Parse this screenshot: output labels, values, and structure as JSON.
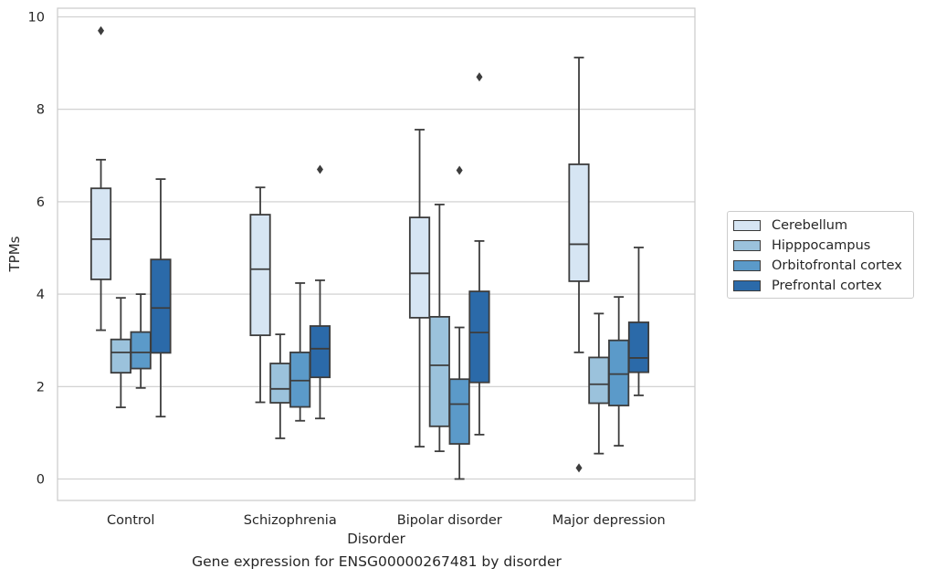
{
  "caption": "Gene expression for ENSG00000267481 by disorder",
  "chart_data": {
    "type": "box",
    "xlabel": "Disorder",
    "ylabel": "TPMs",
    "ylim": [
      -0.45,
      10.2
    ],
    "yticks": [
      0,
      2,
      4,
      6,
      8,
      10
    ],
    "grid": true,
    "legend_position": "right",
    "categories": [
      "Control",
      "Schizophrenia",
      "Bipolar disorder",
      "Major depression"
    ],
    "series": [
      {
        "name": "Cerebellum",
        "color": "#d6e5f3",
        "boxes": [
          {
            "whislo": 3.22,
            "q1": 4.32,
            "med": 5.19,
            "q3": 6.29,
            "whishi": 6.91,
            "fliers": [
              9.7
            ]
          },
          {
            "whislo": 1.66,
            "q1": 3.11,
            "med": 4.54,
            "q3": 5.72,
            "whishi": 6.31,
            "fliers": []
          },
          {
            "whislo": 0.7,
            "q1": 3.49,
            "med": 4.45,
            "q3": 5.66,
            "whishi": 7.56,
            "fliers": []
          },
          {
            "whislo": 2.74,
            "q1": 4.28,
            "med": 5.08,
            "q3": 6.81,
            "whishi": 9.12,
            "fliers": [
              0.24
            ]
          }
        ]
      },
      {
        "name": "Hipppocampus",
        "color": "#9bc2dc",
        "boxes": [
          {
            "whislo": 1.55,
            "q1": 2.3,
            "med": 2.74,
            "q3": 3.02,
            "whishi": 3.92,
            "fliers": []
          },
          {
            "whislo": 0.88,
            "q1": 1.65,
            "med": 1.95,
            "q3": 2.5,
            "whishi": 3.13,
            "fliers": []
          },
          {
            "whislo": 0.6,
            "q1": 1.14,
            "med": 2.46,
            "q3": 3.51,
            "whishi": 5.94,
            "fliers": []
          },
          {
            "whislo": 0.55,
            "q1": 1.64,
            "med": 2.05,
            "q3": 2.63,
            "whishi": 3.58,
            "fliers": []
          }
        ]
      },
      {
        "name": "Orbitofrontal cortex",
        "color": "#5b9ac9",
        "boxes": [
          {
            "whislo": 1.97,
            "q1": 2.39,
            "med": 2.74,
            "q3": 3.18,
            "whishi": 4.0,
            "fliers": []
          },
          {
            "whislo": 1.26,
            "q1": 1.56,
            "med": 2.13,
            "q3": 2.74,
            "whishi": 4.24,
            "fliers": []
          },
          {
            "whislo": 0.0,
            "q1": 0.76,
            "med": 1.62,
            "q3": 2.16,
            "whishi": 3.28,
            "fliers": [
              6.68
            ]
          },
          {
            "whislo": 0.72,
            "q1": 1.59,
            "med": 2.27,
            "q3": 3.0,
            "whishi": 3.94,
            "fliers": []
          }
        ]
      },
      {
        "name": "Prefrontal cortex",
        "color": "#2b6aa9",
        "boxes": [
          {
            "whislo": 1.35,
            "q1": 2.73,
            "med": 3.7,
            "q3": 4.75,
            "whishi": 6.49,
            "fliers": []
          },
          {
            "whislo": 1.31,
            "q1": 2.2,
            "med": 2.82,
            "q3": 3.31,
            "whishi": 4.3,
            "fliers": [
              6.7
            ]
          },
          {
            "whislo": 0.96,
            "q1": 2.09,
            "med": 3.17,
            "q3": 4.06,
            "whishi": 5.15,
            "fliers": [
              8.7
            ]
          },
          {
            "whislo": 1.81,
            "q1": 2.31,
            "med": 2.62,
            "q3": 3.39,
            "whishi": 5.01,
            "fliers": []
          }
        ]
      }
    ]
  }
}
